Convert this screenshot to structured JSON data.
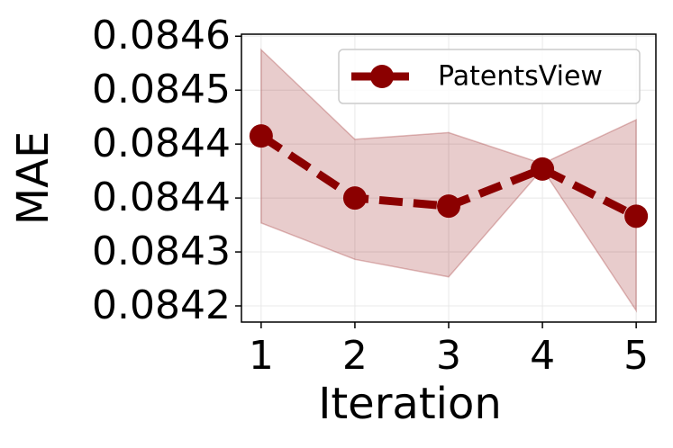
{
  "chart_data": {
    "type": "line",
    "xlabel": "Iteration",
    "ylabel": "MAE",
    "x": [
      1,
      2,
      3,
      4,
      5
    ],
    "series": [
      {
        "name": "PatentsView",
        "color": "#8b0000",
        "values": [
          0.084452,
          0.08436,
          0.084348,
          0.084403,
          0.084333
        ],
        "upper": [
          0.08458,
          0.084447,
          0.084457,
          0.084411,
          0.084476
        ],
        "lower": [
          0.084323,
          0.084269,
          0.084243,
          0.084403,
          0.084193
        ]
      }
    ],
    "xlim": [
      0.79,
      5.21
    ],
    "xticks": [
      1,
      2,
      3,
      4,
      5
    ],
    "ylim": [
      0.084176,
      0.084603
    ],
    "yticks": [
      {
        "value": 0.0846,
        "label": "0.0846"
      },
      {
        "value": 0.08452,
        "label": "0.0845"
      },
      {
        "value": 0.08444,
        "label": "0.0844"
      },
      {
        "value": 0.08436,
        "label": "0.0844"
      },
      {
        "value": 0.08428,
        "label": "0.0843"
      },
      {
        "value": 0.0842,
        "label": "0.0842"
      }
    ],
    "grid": true,
    "legend": "upper right"
  }
}
